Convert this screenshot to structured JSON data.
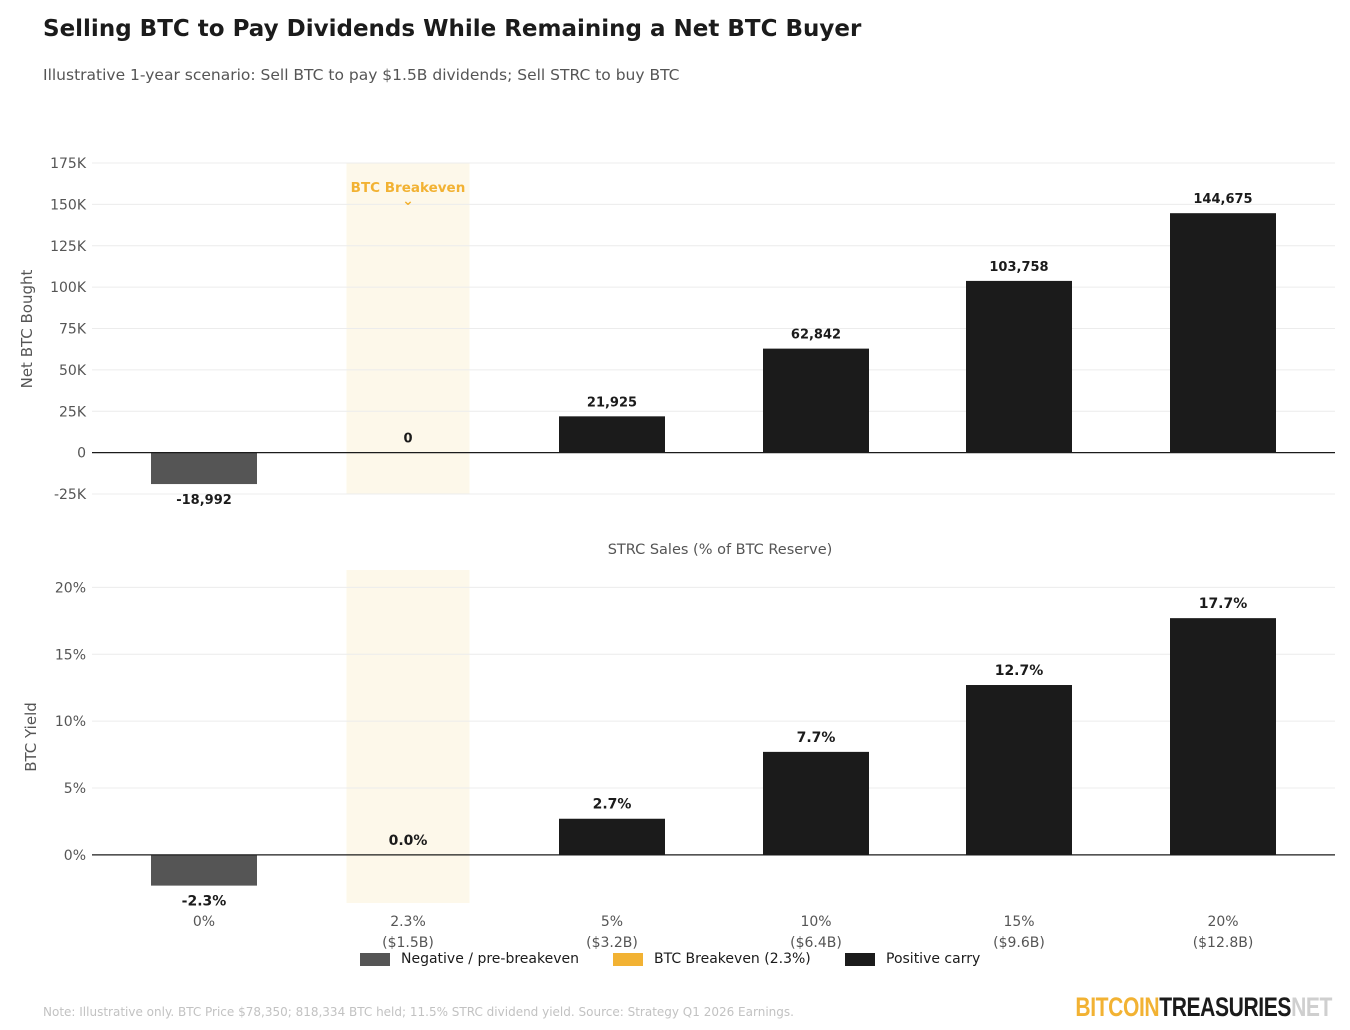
{
  "header": {
    "title": "Selling BTC to Pay Dividends While Remaining a Net BTC Buyer",
    "subtitle": "Illustrative 1-year scenario: Sell BTC to pay $1.5B dividends; Sell STRC to buy BTC"
  },
  "colors": {
    "negative": "#555555",
    "breakeven": "#f2b233",
    "breakeven_band": "#fdf8ea",
    "positive": "#1b1b1b",
    "grid": "#ececec"
  },
  "chart_data": [
    {
      "type": "bar",
      "ylabel": "Net BTC Bought",
      "xlabel": "STRC Sales (% of BTC Reserve)",
      "ylim": [
        -25000,
        175000
      ],
      "yticks": [
        -25000,
        0,
        25000,
        50000,
        75000,
        100000,
        125000,
        150000,
        175000
      ],
      "ytick_labels": [
        "-25K",
        "0",
        "25K",
        "50K",
        "75K",
        "100K",
        "125K",
        "150K",
        "175K"
      ],
      "categories": [
        "0%",
        "2.3%",
        "5%",
        "10%",
        "15%",
        "20%"
      ],
      "values": [
        -18992,
        0,
        21925,
        62842,
        103758,
        144675
      ],
      "value_labels": [
        "-18,992",
        "0",
        "21,925",
        "62,842",
        "103,758",
        "144,675"
      ],
      "bar_classes": [
        "negative",
        "breakeven",
        "positive",
        "positive",
        "positive",
        "positive"
      ],
      "annotation": "BTC Breakeven",
      "annotation_marker": "⌄",
      "grid": true
    },
    {
      "type": "bar",
      "ylabel": "BTC Yield",
      "ylim": [
        -3.6,
        21.3
      ],
      "yticks": [
        0,
        5,
        10,
        15,
        20
      ],
      "ytick_labels": [
        "0%",
        "5%",
        "10%",
        "15%",
        "20%"
      ],
      "categories": [
        "0%",
        "2.3%",
        "5%",
        "10%",
        "15%",
        "20%"
      ],
      "category_sublabels": [
        "",
        "($1.5B)",
        "($3.2B)",
        "($6.4B)",
        "($9.6B)",
        "($12.8B)"
      ],
      "values": [
        -2.3,
        0.0,
        2.7,
        7.7,
        12.7,
        17.7
      ],
      "value_labels": [
        "-2.3%",
        "0.0%",
        "2.7%",
        "7.7%",
        "12.7%",
        "17.7%"
      ],
      "bar_classes": [
        "negative",
        "breakeven",
        "positive",
        "positive",
        "positive",
        "positive"
      ],
      "grid": true
    }
  ],
  "legend": [
    {
      "label": "Negative / pre-breakeven",
      "color": "#555555"
    },
    {
      "label": "BTC Breakeven (2.3%)",
      "color": "#f2b233"
    },
    {
      "label": "Positive carry",
      "color": "#1b1b1b"
    }
  ],
  "note": "Note: Illustrative only.  BTC Price $78,350; 818,334 BTC held; 11.5% STRC dividend yield.  Source: Strategy Q1 2026 Earnings.",
  "logo": {
    "part1": "BITCOIN",
    "part2": "TREASURIES",
    "part3": "NET"
  }
}
